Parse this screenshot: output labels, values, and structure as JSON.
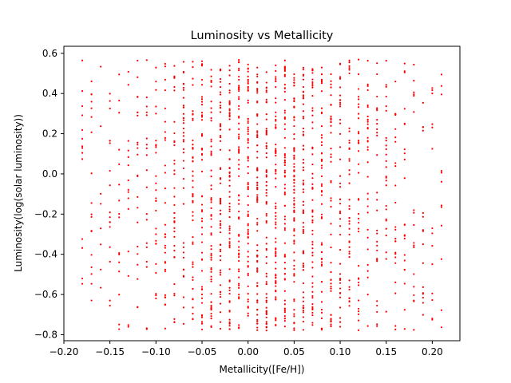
{
  "chart_data": {
    "type": "scatter",
    "title": "Luminosity vs Metallicity",
    "xlabel": "Metallicity([Fe/H])",
    "ylabel": "Luminosity(log(solar luminosity))",
    "xlim": [
      -0.2,
      0.23
    ],
    "ylim": [
      -0.83,
      0.635
    ],
    "xticks": [
      -0.2,
      -0.15,
      -0.1,
      -0.05,
      0.0,
      0.05,
      0.1,
      0.15,
      0.2
    ],
    "xtick_labels": [
      "−0.20",
      "−0.15",
      "−0.10",
      "−0.05",
      "0.00",
      "0.05",
      "0.10",
      "0.15",
      "0.20"
    ],
    "yticks": [
      -0.8,
      -0.6,
      -0.4,
      -0.2,
      0.0,
      0.2,
      0.4,
      0.6
    ],
    "ytick_labels": [
      "−0.8",
      "−0.6",
      "−0.4",
      "−0.2",
      "0.0",
      "0.2",
      "0.4",
      "0.6"
    ],
    "grid": false,
    "marker_color": "#ff0000",
    "series": [
      {
        "x_values": [
          -0.18,
          -0.17,
          -0.16,
          -0.15,
          -0.14,
          -0.13,
          -0.12,
          -0.11,
          -0.1,
          -0.09,
          -0.08,
          -0.07,
          -0.06,
          -0.05,
          -0.04,
          -0.03,
          -0.02,
          -0.01,
          0.0,
          0.01,
          0.02,
          0.03,
          0.04,
          0.05,
          0.06,
          0.07,
          0.08,
          0.09,
          0.1,
          0.11,
          0.12,
          0.13,
          0.14,
          0.15,
          0.16,
          0.17,
          0.18,
          0.19,
          0.2,
          0.21
        ],
        "points_per_x": [
          14,
          18,
          8,
          17,
          16,
          15,
          22,
          19,
          27,
          30,
          37,
          39,
          45,
          52,
          58,
          60,
          63,
          62,
          68,
          75,
          70,
          70,
          72,
          80,
          65,
          58,
          52,
          48,
          45,
          40,
          35,
          32,
          28,
          26,
          24,
          22,
          18,
          16,
          14,
          12
        ],
        "y_range": [
          -0.78,
          0.57
        ]
      }
    ]
  }
}
